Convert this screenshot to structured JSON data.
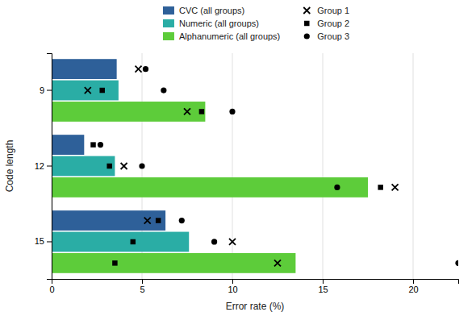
{
  "chart_data": {
    "type": "bar",
    "orientation": "horizontal",
    "categories": [
      "9",
      "12",
      "15"
    ],
    "xlabel": "Error rate (%)",
    "ylabel": "Code length",
    "xlim": [
      0,
      22.5
    ],
    "xticks": [
      0,
      5,
      10,
      15,
      20
    ],
    "grid": true,
    "legend": "top",
    "series": [
      {
        "name": "CVC (all groups)",
        "type": "bar",
        "color": "#2e6099",
        "values": [
          3.6,
          1.8,
          6.3
        ]
      },
      {
        "name": "Numeric (all groups)",
        "type": "bar",
        "color": "#2aada5",
        "values": [
          3.7,
          3.5,
          7.6
        ]
      },
      {
        "name": "Alphanumeric (all groups)",
        "type": "bar",
        "color": "#5dcc3a",
        "values": [
          8.5,
          17.5,
          13.5
        ]
      },
      {
        "name": "Group 1",
        "type": "scatter",
        "marker": "x",
        "color": "black",
        "values": [
          [
            4.8,
            2.0,
            7.5
          ],
          [
            null,
            4.0,
            19.0
          ],
          [
            5.3,
            10.0,
            12.5
          ]
        ]
      },
      {
        "name": "Group 2",
        "type": "scatter",
        "marker": "square",
        "color": "black",
        "values": [
          [
            null,
            2.8,
            8.3
          ],
          [
            2.3,
            3.2,
            18.2
          ],
          [
            5.9,
            4.5,
            3.5
          ]
        ]
      },
      {
        "name": "Group 3",
        "type": "scatter",
        "marker": "circle",
        "color": "black",
        "values": [
          [
            5.2,
            6.2,
            10.0
          ],
          [
            2.7,
            5.0,
            15.8
          ],
          [
            7.2,
            9.0,
            22.5
          ]
        ]
      }
    ]
  }
}
